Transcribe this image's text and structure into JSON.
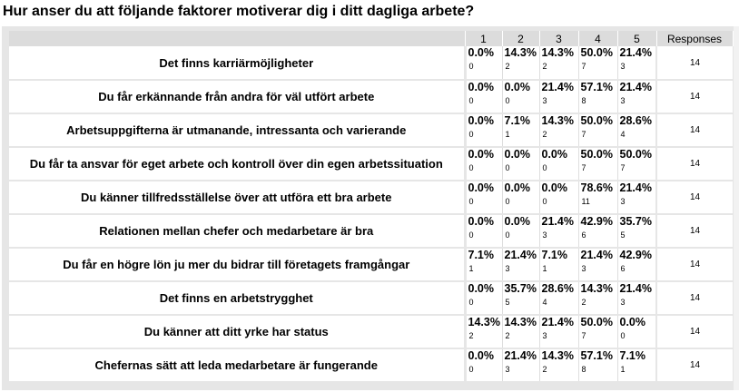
{
  "question": {
    "title": "Hur anser du att följande faktorer motiverar dig i ditt dagliga arbete?"
  },
  "table": {
    "headers": [
      "1",
      "2",
      "3",
      "4",
      "5"
    ],
    "responses_header": "Responses",
    "rows": [
      {
        "statement": "Det finns karriärmöjligheter",
        "pct": [
          "0.0%",
          "14.3%",
          "14.3%",
          "50.0%",
          "21.4%"
        ],
        "counts": [
          "0",
          "2",
          "2",
          "7",
          "3"
        ],
        "responses": "14"
      },
      {
        "statement": "Du får erkännande från andra för väl utfört arbete",
        "pct": [
          "0.0%",
          "0.0%",
          "21.4%",
          "57.1%",
          "21.4%"
        ],
        "counts": [
          "0",
          "0",
          "3",
          "8",
          "3"
        ],
        "responses": "14"
      },
      {
        "statement": "Arbetsuppgifterna är utmanande, intressanta och varierande",
        "pct": [
          "0.0%",
          "7.1%",
          "14.3%",
          "50.0%",
          "28.6%"
        ],
        "counts": [
          "0",
          "1",
          "2",
          "7",
          "4"
        ],
        "responses": "14"
      },
      {
        "statement": "Du får ta ansvar för eget arbete och kontroll över din egen arbetssituation",
        "pct": [
          "0.0%",
          "0.0%",
          "0.0%",
          "50.0%",
          "50.0%"
        ],
        "counts": [
          "0",
          "0",
          "0",
          "7",
          "7"
        ],
        "responses": "14"
      },
      {
        "statement": "Du känner tillfredsställelse över att utföra ett bra arbete",
        "pct": [
          "0.0%",
          "0.0%",
          "0.0%",
          "78.6%",
          "21.4%"
        ],
        "counts": [
          "0",
          "0",
          "0",
          "11",
          "3"
        ],
        "responses": "14"
      },
      {
        "statement": "Relationen mellan chefer och medarbetare är bra",
        "pct": [
          "0.0%",
          "0.0%",
          "21.4%",
          "42.9%",
          "35.7%"
        ],
        "counts": [
          "0",
          "0",
          "3",
          "6",
          "5"
        ],
        "responses": "14"
      },
      {
        "statement": "Du får en högre lön ju mer du bidrar till företagets framgångar",
        "pct": [
          "7.1%",
          "21.4%",
          "7.1%",
          "21.4%",
          "42.9%"
        ],
        "counts": [
          "1",
          "3",
          "1",
          "3",
          "6"
        ],
        "responses": "14"
      },
      {
        "statement": "Det finns en arbetstrygghet",
        "pct": [
          "0.0%",
          "35.7%",
          "28.6%",
          "14.3%",
          "21.4%"
        ],
        "counts": [
          "0",
          "5",
          "4",
          "2",
          "3"
        ],
        "responses": "14"
      },
      {
        "statement": "Du känner att ditt yrke har status",
        "pct": [
          "14.3%",
          "14.3%",
          "21.4%",
          "50.0%",
          "0.0%"
        ],
        "counts": [
          "2",
          "2",
          "3",
          "7",
          "0"
        ],
        "responses": "14"
      },
      {
        "statement": "Chefernas sätt att leda medarbetare är fungerande",
        "pct": [
          "0.0%",
          "21.4%",
          "14.3%",
          "57.1%",
          "7.1%"
        ],
        "counts": [
          "0",
          "3",
          "2",
          "8",
          "1"
        ],
        "responses": "14"
      }
    ]
  },
  "colors": {
    "panel_background": "#e6e6e6",
    "header_background": "#dcdcdc",
    "cell_background": "#ffffff"
  }
}
